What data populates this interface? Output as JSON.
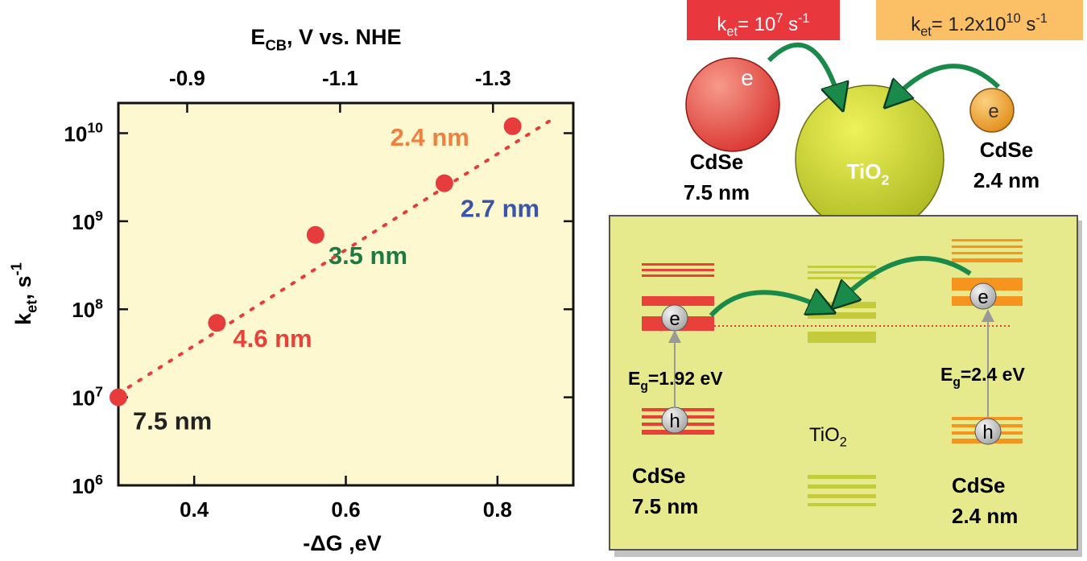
{
  "chart_data": {
    "type": "scatter",
    "x2label": [
      {
        "t": "E"
      },
      {
        "sub": "CB"
      },
      {
        "t": ",  V vs. NHE"
      }
    ],
    "xlabel": "-ΔG ,eV",
    "ylabel": [
      {
        "t": "k"
      },
      {
        "sub": "et"
      },
      {
        "t": ", s"
      },
      {
        "sup": "-1"
      }
    ],
    "xlim": [
      0.3,
      0.9
    ],
    "xticks": [
      0.4,
      0.6,
      0.8
    ],
    "x2lim": [
      -0.81,
      -1.405
    ],
    "x2ticks": [
      -0.9,
      -1.1,
      -1.3
    ],
    "ylim": [
      1000000,
      22000000000
    ],
    "log_y": true,
    "yticks": [
      {
        "value": 1000000,
        "label": [
          {
            "t": "10"
          },
          {
            "sup": "6"
          }
        ]
      },
      {
        "value": 10000000,
        "label": [
          {
            "t": "10"
          },
          {
            "sup": "7"
          }
        ]
      },
      {
        "value": 100000000,
        "label": [
          {
            "t": "10"
          },
          {
            "sup": "8"
          }
        ]
      },
      {
        "value": 1000000000,
        "label": [
          {
            "t": "10"
          },
          {
            "sup": "9"
          }
        ]
      },
      {
        "value": 10000000000,
        "label": [
          {
            "t": "10"
          },
          {
            "sup": "10"
          }
        ]
      }
    ],
    "series": [
      {
        "type": "scatter",
        "color": "#e73c3c",
        "x": [
          0.3,
          0.43,
          0.56,
          0.73,
          0.82
        ],
        "values": [
          10000000,
          70000000,
          700000000,
          2700000000,
          12000000000
        ],
        "point_labels": [
          "7.5 nm",
          "4.6 nm",
          "3.5 nm",
          "2.7 nm",
          "2.4 nm"
        ],
        "label_colors": [
          "#222222",
          "#e8413a",
          "#1e7a45",
          "#3a54a8",
          "#f08040"
        ]
      },
      {
        "type": "line",
        "style": "dotted",
        "color": "#e73c3c",
        "x": [
          0.3,
          0.87
        ],
        "values": [
          11000000,
          14000000000
        ]
      }
    ]
  },
  "diagram": {
    "rate_left": [
      {
        "t": "k"
      },
      {
        "sub": "et"
      },
      {
        "t": "= 10"
      },
      {
        "sup": "7"
      },
      {
        "t": " s"
      },
      {
        "sup": "-1"
      }
    ],
    "rate_right": [
      {
        "t": "k"
      },
      {
        "sub": "et"
      },
      {
        "t": "= 1.2x10"
      },
      {
        "sup": "10"
      },
      {
        "t": " s"
      },
      {
        "sup": "-1"
      }
    ],
    "electron": "e",
    "hole": "h",
    "top_left_label": [
      "CdSe",
      "7.5 nm"
    ],
    "top_right_label": [
      "CdSe",
      "2.4 nm"
    ],
    "tio2": [
      {
        "t": "TiO"
      },
      {
        "sub": "2"
      }
    ],
    "gap_left": [
      {
        "t": "E"
      },
      {
        "sub": "g"
      },
      {
        "t": "=1.92 eV"
      }
    ],
    "gap_right": [
      {
        "t": "E"
      },
      {
        "sub": "g"
      },
      {
        "t": "=2.4 eV"
      }
    ],
    "bottom_tio2": [
      {
        "t": "TiO"
      },
      {
        "sub": "2"
      }
    ],
    "bottom_left_label": [
      "CdSe",
      "7.5 nm"
    ],
    "bottom_right_label": [
      "CdSe",
      "2.4 nm"
    ]
  }
}
